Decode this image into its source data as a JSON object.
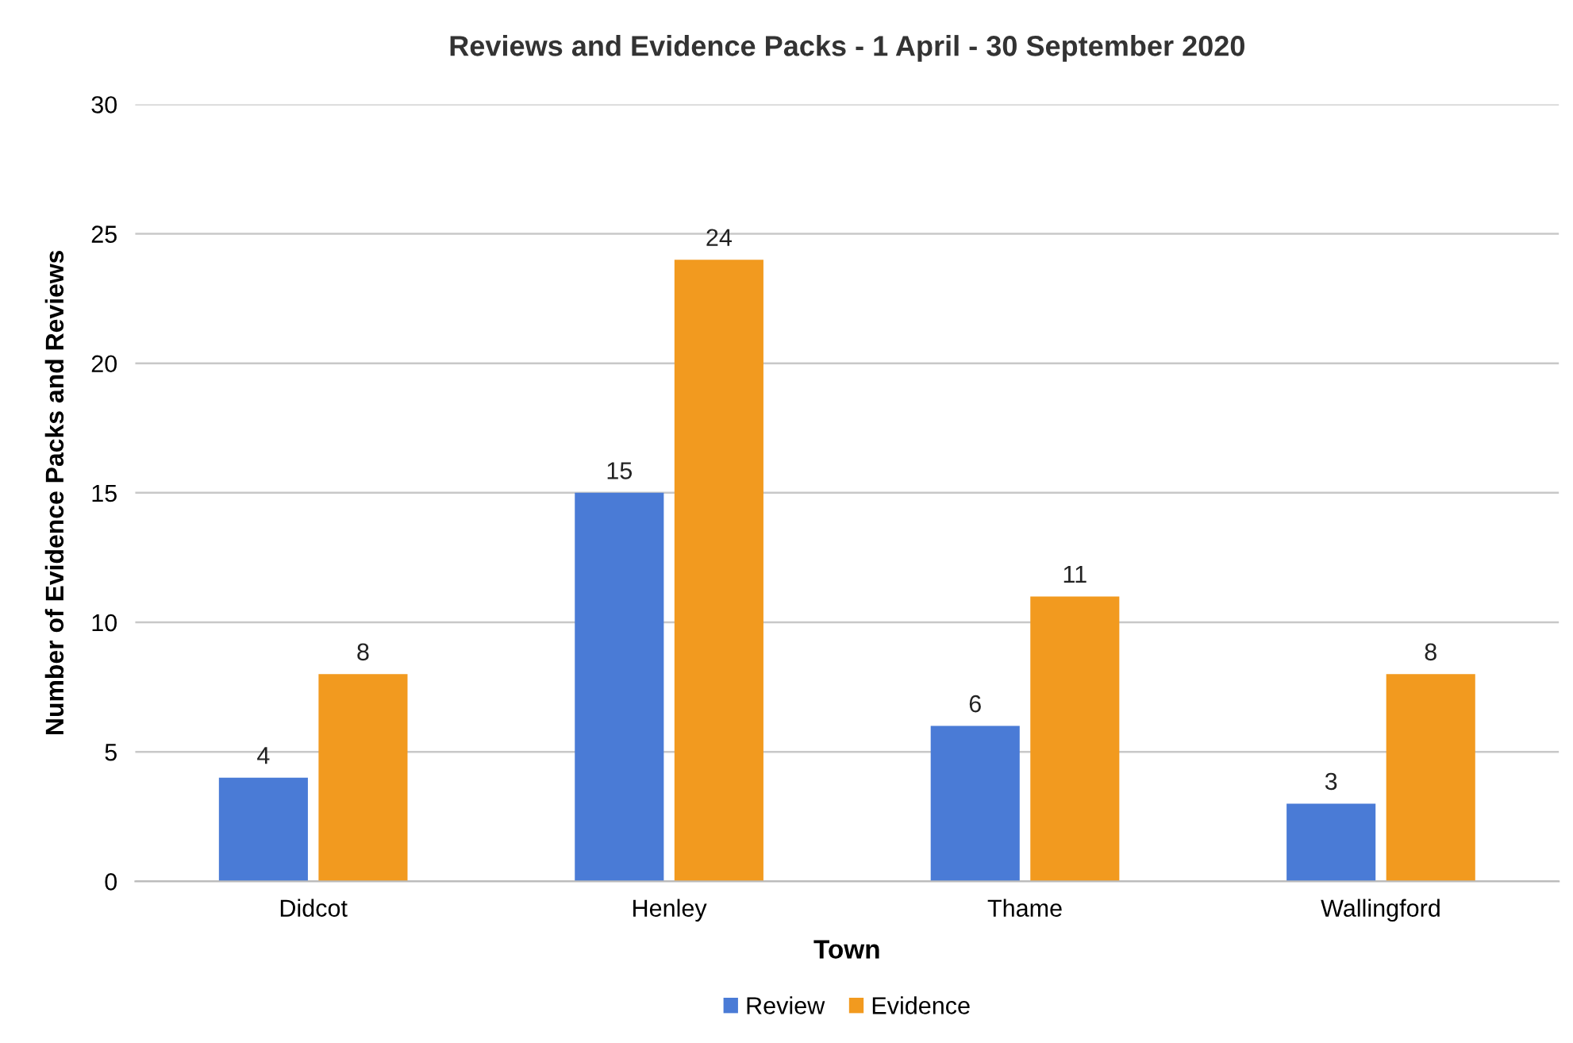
{
  "chart_data": {
    "type": "bar",
    "title": "Reviews and Evidence Packs - 1 April - 30 September 2020",
    "xlabel": "Town",
    "ylabel": "Number of Evidence Packs and Reviews",
    "categories": [
      "Didcot",
      "Henley",
      "Thame",
      "Wallingford"
    ],
    "series": [
      {
        "name": "Review",
        "color": "#4a7bd6",
        "values": [
          4,
          15,
          6,
          3
        ]
      },
      {
        "name": "Evidence",
        "color": "#f29a1f",
        "values": [
          8,
          24,
          11,
          8
        ]
      }
    ],
    "ylim": [
      0,
      30
    ],
    "yticks": [
      0,
      5,
      10,
      15,
      20,
      25,
      30
    ],
    "grid": "y",
    "legend": "bottom",
    "data_labels": true
  }
}
